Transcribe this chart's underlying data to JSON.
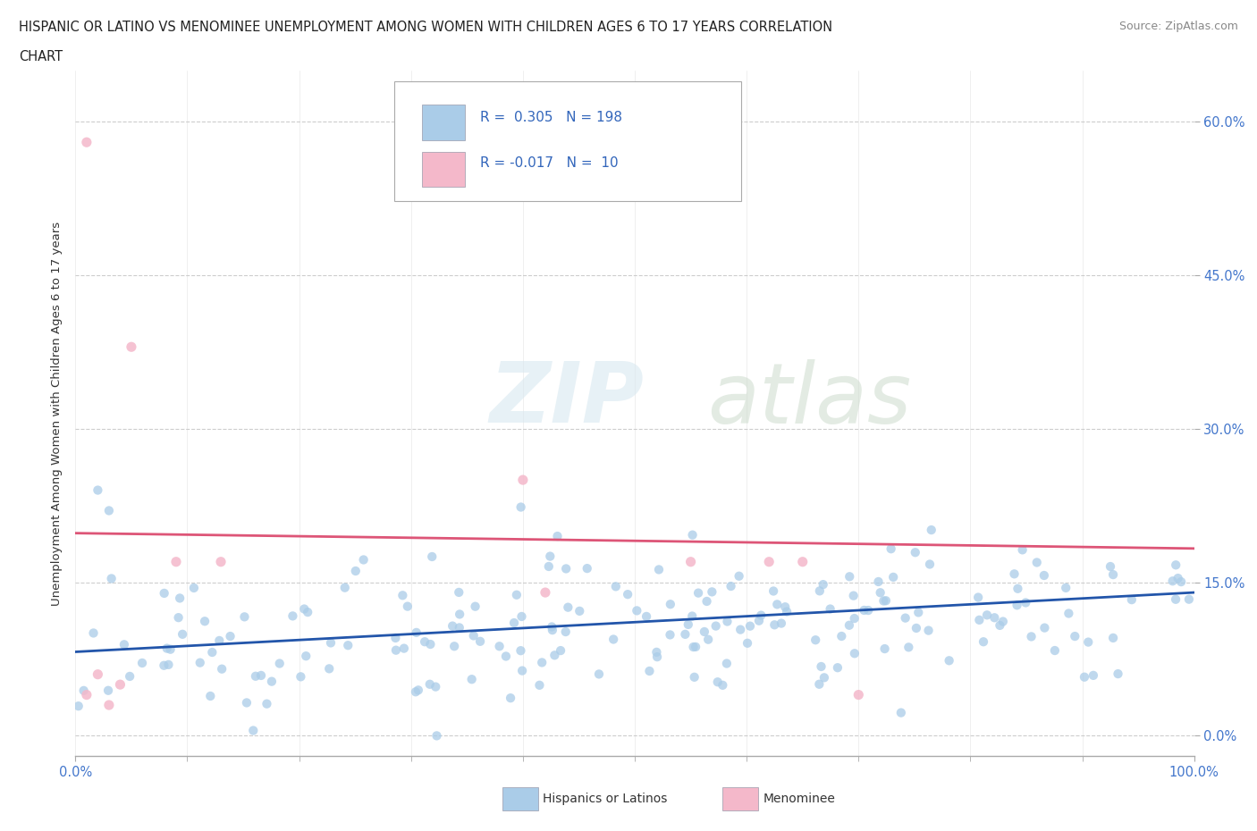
{
  "title_line1": "HISPANIC OR LATINO VS MENOMINEE UNEMPLOYMENT AMONG WOMEN WITH CHILDREN AGES 6 TO 17 YEARS CORRELATION",
  "title_line2": "CHART",
  "source_text": "Source: ZipAtlas.com",
  "ylabel": "Unemployment Among Women with Children Ages 6 to 17 years",
  "xlim": [
    0.0,
    1.0
  ],
  "ylim": [
    -0.02,
    0.65
  ],
  "x_tick_labels": [
    "0.0%",
    "100.0%"
  ],
  "y_tick_labels": [
    "0.0%",
    "15.0%",
    "30.0%",
    "45.0%",
    "60.0%"
  ],
  "y_tick_values": [
    0.0,
    0.15,
    0.3,
    0.45,
    0.6
  ],
  "grid_color": "#c8c8c8",
  "background_color": "#ffffff",
  "blue_color": "#aacce8",
  "pink_color": "#f4b8ca",
  "blue_line_color": "#2255aa",
  "pink_line_color": "#dd5577",
  "watermark_zip": "ZIP",
  "watermark_atlas": "atlas",
  "blue_trendline_x": [
    0.0,
    1.0
  ],
  "blue_trendline_y": [
    0.082,
    0.14
  ],
  "pink_trendline_x": [
    0.0,
    1.0
  ],
  "pink_trendline_y": [
    0.198,
    0.183
  ]
}
